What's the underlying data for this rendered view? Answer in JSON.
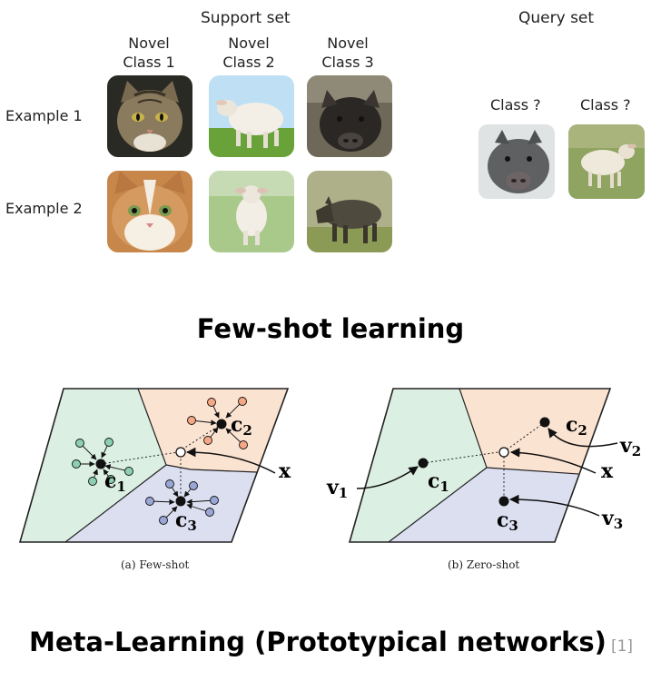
{
  "few_shot": {
    "support_title": "Support set",
    "query_title": "Query set",
    "class_headers": [
      {
        "line1": "Novel",
        "line2": "Class 1"
      },
      {
        "line1": "Novel",
        "line2": "Class 2"
      },
      {
        "line1": "Novel",
        "line2": "Class 3"
      }
    ],
    "row_labels": [
      "Example 1",
      "Example 2"
    ],
    "query_labels": [
      "Class ?",
      "Class ?"
    ],
    "images": {
      "support": [
        [
          "cat",
          "sheep",
          "boar"
        ],
        [
          "cat",
          "sheep",
          "boar"
        ]
      ],
      "query": [
        "boar",
        "sheep"
      ]
    },
    "section_title": "Few-shot learning"
  },
  "proto": {
    "panel_a": {
      "caption": "(a) Few-shot",
      "labels": {
        "c1": "c",
        "c1_sub": "1",
        "c2": "c",
        "c2_sub": "2",
        "c3": "c",
        "c3_sub": "3",
        "x": "x"
      }
    },
    "panel_b": {
      "caption": "(b) Zero-shot",
      "labels": {
        "c1": "c",
        "c1_sub": "1",
        "c2": "c",
        "c2_sub": "2",
        "c3": "c",
        "c3_sub": "3",
        "x": "x",
        "v1": "v",
        "v1_sub": "1",
        "v2": "v",
        "v2_sub": "2",
        "v3": "v",
        "v3_sub": "3"
      }
    },
    "colors": {
      "region_green": "#dcefe3",
      "region_orange": "#fbe3d2",
      "region_blue": "#dcdff0",
      "point_green": "#8cd0b0",
      "point_orange": "#f4a886",
      "point_blue": "#9aa6d6"
    },
    "section_title": "Meta-Learning (Prototypical networks)",
    "reference": "[1]"
  }
}
